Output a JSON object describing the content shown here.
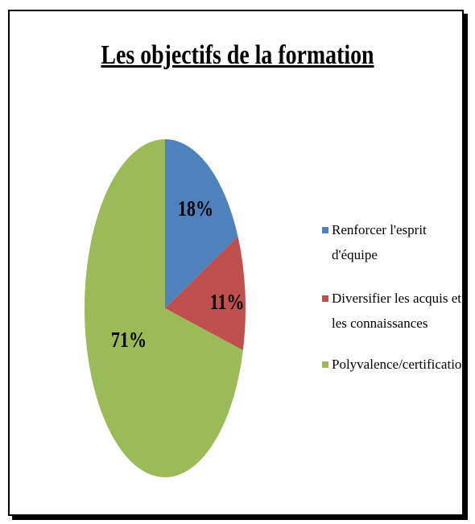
{
  "chart_data": {
    "type": "pie",
    "title": "Les objectifs de la formation",
    "categories": [
      "Renforcer l'esprit d'équipe",
      "Diversifier les acquis et les connaissances",
      "Polyvalence/certification"
    ],
    "values": [
      18,
      11,
      71
    ],
    "value_labels": [
      "18%",
      "11%",
      "71%"
    ],
    "colors": [
      "#4f81bd",
      "#c0504d",
      "#9bbb59"
    ],
    "legend": "right"
  }
}
